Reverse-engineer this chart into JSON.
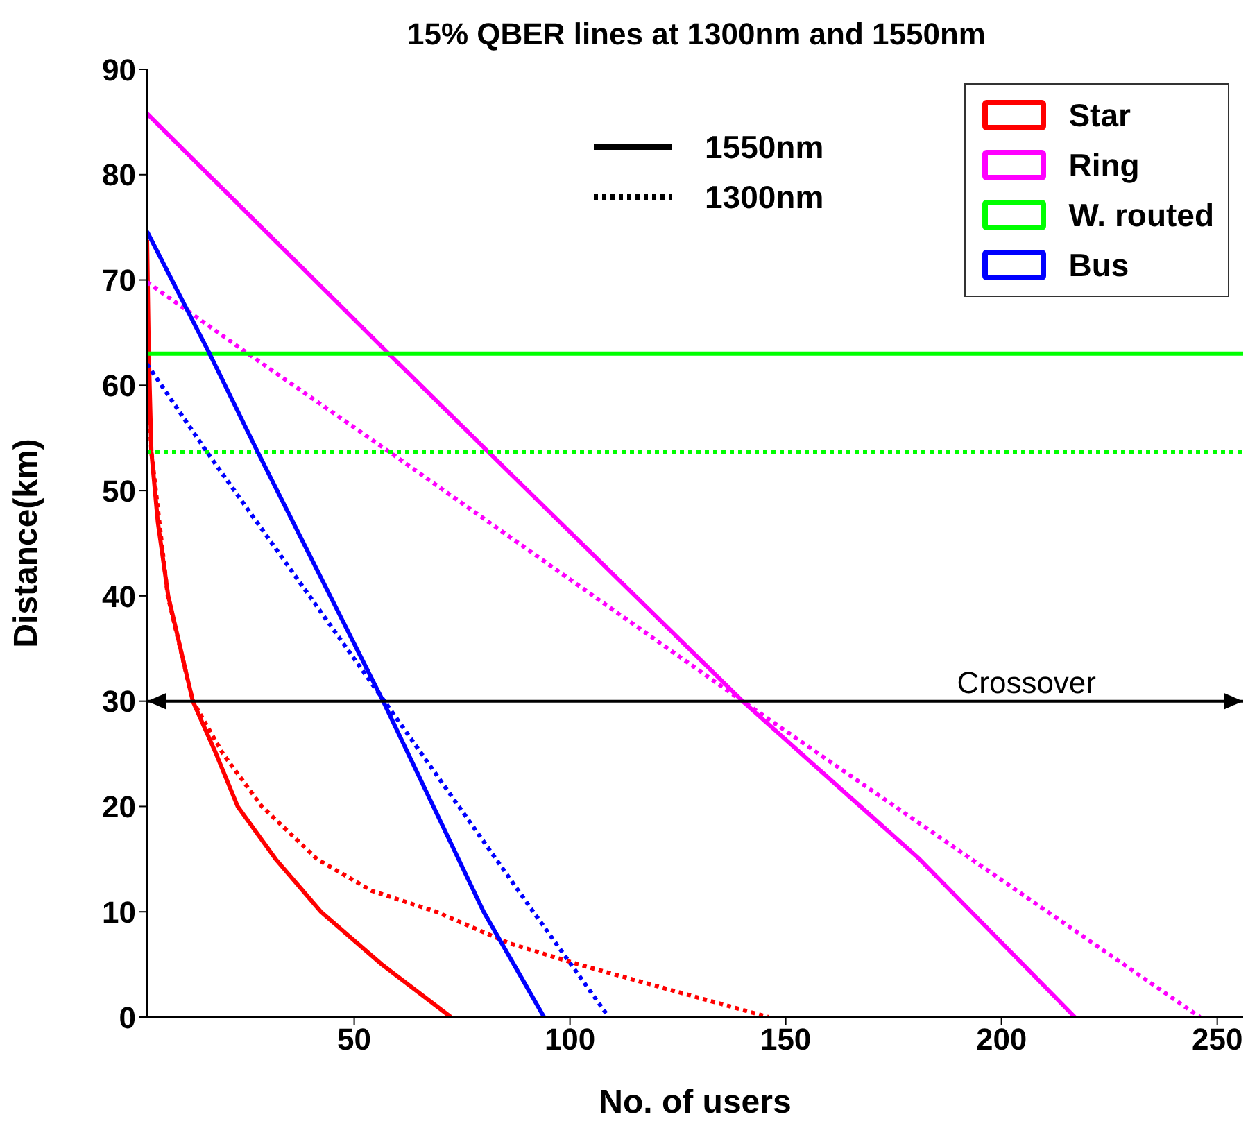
{
  "chart_data": {
    "type": "line",
    "title": "15% QBER lines at 1300nm and 1550nm",
    "xlabel": "No. of users",
    "ylabel": "Distance(km)",
    "xlim": [
      2,
      256
    ],
    "xticks": [
      50,
      100,
      150,
      200,
      250
    ],
    "ylim": [
      0,
      90
    ],
    "yticks": [
      0,
      10,
      20,
      30,
      40,
      50,
      60,
      70,
      80,
      90
    ],
    "legend": "top right",
    "marker": "none",
    "annotations": [
      "1550nm",
      "1300nm"
    ],
    "ref_lines": [
      {
        "axis": "y",
        "value": 30,
        "label": "Crossover",
        "color": "#000000"
      }
    ],
    "series": [
      {
        "name": "Star",
        "color": "#ff0000",
        "line_style": "solid",
        "x": [
          2,
          2.4,
          3,
          4.5,
          6.9,
          12.6,
          18,
          23,
          31.8,
          42.3,
          56.4,
          72.4
        ],
        "values": [
          73.8,
          63,
          53.7,
          47,
          40,
          30,
          25,
          20,
          15,
          10,
          5,
          0
        ]
      },
      {
        "color": "#ff0000",
        "line_style": "dotted",
        "x": [
          2,
          3,
          6.8,
          12.6,
          19.6,
          28.6,
          41.4,
          54,
          69,
          86,
          102,
          124,
          146
        ],
        "values": [
          61.4,
          53.7,
          40,
          30,
          25,
          20,
          15,
          12,
          10,
          7,
          5,
          2.5,
          0
        ]
      },
      {
        "name": "Ring",
        "color": "#ff00ff",
        "line_style": "solid",
        "x": [
          2,
          58,
          81,
          140,
          181,
          217
        ],
        "values": [
          85.8,
          63,
          53.7,
          30,
          15,
          0
        ]
      },
      {
        "color": "#ff00ff",
        "line_style": "dotted",
        "x": [
          2,
          25.4,
          57,
          140,
          246
        ],
        "values": [
          69.8,
          63,
          54,
          30,
          0
        ]
      },
      {
        "name": "W. routed",
        "color": "#00ff00",
        "line_style": "solid",
        "x": [
          2,
          256
        ],
        "values": [
          63,
          63
        ]
      },
      {
        "color": "#00ff00",
        "line_style": "dotted",
        "x": [
          2,
          256
        ],
        "values": [
          53.7,
          53.7
        ]
      },
      {
        "name": "Bus",
        "color": "#0000ff",
        "line_style": "solid",
        "x": [
          2,
          16.5,
          27.6,
          56.7,
          80,
          94
        ],
        "values": [
          74.6,
          63,
          53.7,
          30,
          10,
          0
        ]
      },
      {
        "color": "#0000ff",
        "line_style": "dotted",
        "x": [
          2,
          15.8,
          57,
          91.5,
          109
        ],
        "values": [
          62,
          53.7,
          30,
          10,
          0
        ]
      }
    ]
  }
}
